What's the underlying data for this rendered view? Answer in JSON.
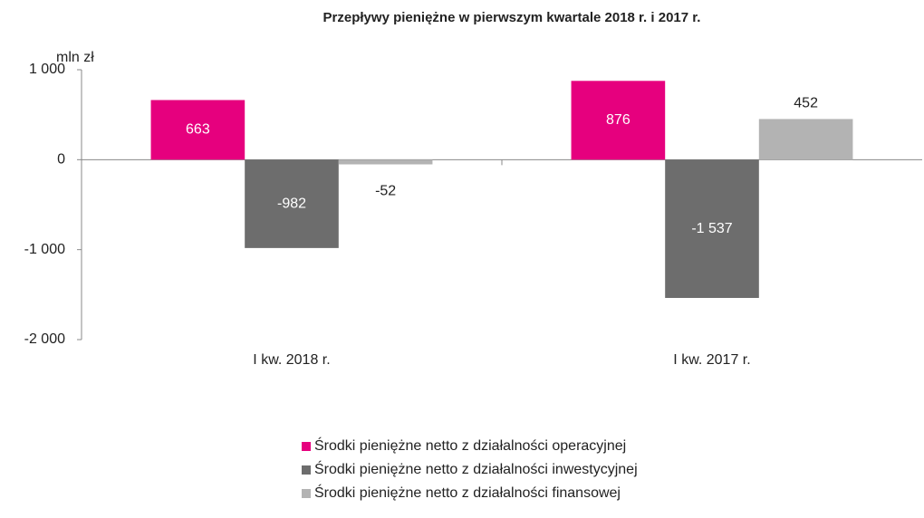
{
  "chart_data": {
    "type": "bar",
    "title": "Przepływy pieniężne w pierwszym kwartale 2018 r. i 2017 r.",
    "y_label": "mln zł",
    "categories": [
      "I kw. 2018 r.",
      "I kw. 2017 r."
    ],
    "series": [
      {
        "name": "Środki pieniężne netto z działalności operacyjnej",
        "color": "#e6007e",
        "values": [
          663,
          876
        ],
        "value_labels": [
          "663",
          "876"
        ]
      },
      {
        "name": "Środki pieniężne netto z działalności inwestycyjnej",
        "color": "#6d6d6d",
        "values": [
          -982,
          -1537
        ],
        "value_labels": [
          "-982",
          "-1 537"
        ]
      },
      {
        "name": "Środki pieniężne netto z działalności finansowej",
        "color": "#b3b3b3",
        "values": [
          -52,
          452
        ],
        "value_labels": [
          "-52",
          "452"
        ]
      }
    ],
    "ylim": [
      -2000,
      1000
    ],
    "yticks": [
      {
        "value": -2000,
        "label": "-2 000"
      },
      {
        "value": -1000,
        "label": "-1 000"
      },
      0,
      {
        "value": 1000,
        "label": "1 000"
      }
    ],
    "legend": "bottom"
  }
}
